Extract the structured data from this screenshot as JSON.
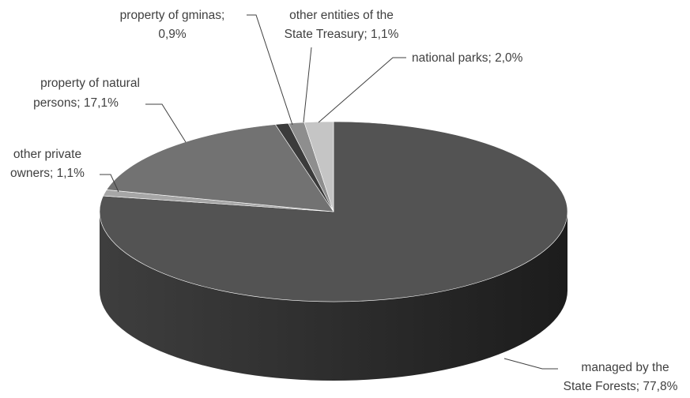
{
  "chart_data": {
    "type": "pie",
    "style": "3d",
    "title": "",
    "legend": "none",
    "slices": [
      {
        "label_lines": [
          "managed by the",
          "State Forests; 77,8%"
        ],
        "value": 77.8,
        "color": "#535353"
      },
      {
        "label_lines": [
          "other private",
          "owners; 1,1%"
        ],
        "value": 1.1,
        "color": "#a6a6a6"
      },
      {
        "label_lines": [
          "property of natural",
          "persons; 17,1%"
        ],
        "value": 17.1,
        "color": "#727272"
      },
      {
        "label_lines": [
          "property of gminas;",
          "0,9%"
        ],
        "value": 0.9,
        "color": "#3b3b3b"
      },
      {
        "label_lines": [
          "other entities of the",
          "State Treasury; 1,1%"
        ],
        "value": 1.1,
        "color": "#8e8e8e"
      },
      {
        "label_lines": [
          "national parks; 2,0%"
        ],
        "value": 2.0,
        "color": "#c5c5c5"
      }
    ]
  }
}
